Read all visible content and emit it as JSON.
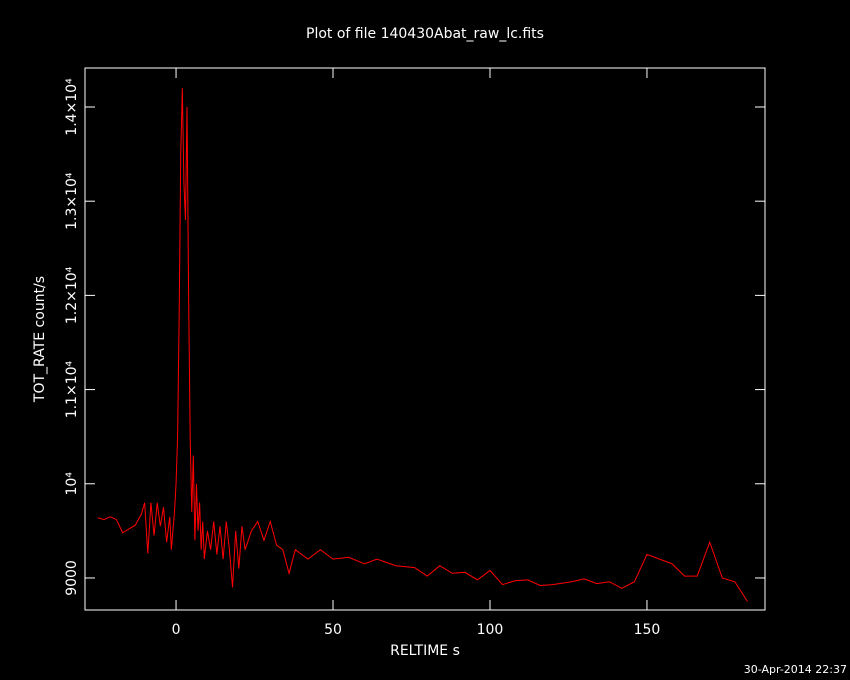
{
  "chart_data": {
    "type": "line",
    "title": "Plot of file 140430Abat_raw_lc.fits",
    "xlabel": "RELTIME  s",
    "ylabel": "TOT_RATE  count/s",
    "timestamp": "30-Apr-2014 22:37",
    "color": "#ff0000",
    "background": "#000000",
    "xlim": [
      -29,
      187.6
    ],
    "ylim": [
      8660,
      14414
    ],
    "xticks": [
      0,
      50,
      100,
      150
    ],
    "yticks": [
      9000,
      {
        "value": 10000,
        "label": "10⁴"
      },
      {
        "value": 11000,
        "label": "1.1×10⁴"
      },
      {
        "value": 12000,
        "label": "1.2×10⁴"
      },
      {
        "value": 13000,
        "label": "1.3×10⁴"
      },
      {
        "value": 14000,
        "label": "1.4×10⁴"
      }
    ],
    "x": [
      -25,
      -23,
      -21,
      -19,
      -17,
      -15,
      -13,
      -11,
      -10,
      -9,
      -8,
      -7,
      -6,
      -5,
      -4,
      -3,
      -2,
      -1.5,
      -0.5,
      0,
      0.5,
      1,
      1.5,
      2,
      2.5,
      3,
      3.5,
      4,
      4.5,
      5,
      5.5,
      6,
      6.5,
      7,
      7.5,
      8,
      8.5,
      9,
      10,
      11,
      12,
      13,
      14,
      15,
      16,
      17,
      18,
      19,
      20,
      21,
      22,
      24,
      26,
      28,
      30,
      32,
      34,
      36,
      38,
      42,
      46,
      50,
      55,
      60,
      64,
      70,
      76,
      80,
      84,
      88,
      92,
      96,
      100,
      104,
      108,
      112,
      116,
      120,
      126,
      130,
      134,
      138,
      142,
      146,
      150,
      154,
      158,
      162,
      166,
      170,
      174,
      178,
      182
    ],
    "values": [
      9640,
      9620,
      9650,
      9620,
      9480,
      9520,
      9560,
      9680,
      9800,
      9260,
      9800,
      9450,
      9800,
      9550,
      9750,
      9380,
      9650,
      9300,
      9700,
      10000,
      10500,
      11800,
      13500,
      14200,
      13200,
      12800,
      14000,
      12000,
      10500,
      9700,
      10300,
      9400,
      10000,
      9500,
      9800,
      9300,
      9600,
      9200,
      9500,
      9300,
      9600,
      9250,
      9550,
      9200,
      9600,
      9300,
      8900,
      9500,
      9100,
      9550,
      9300,
      9500,
      9600,
      9400,
      9600,
      9350,
      9300,
      9050,
      9300,
      9200,
      9300,
      9200,
      9220,
      9150,
      9200,
      9130,
      9110,
      9020,
      9130,
      9050,
      9060,
      8980,
      9080,
      8930,
      8970,
      8980,
      8920,
      8930,
      8960,
      8990,
      8940,
      8960,
      8890,
      8960,
      9250,
      9200,
      9150,
      9020,
      9020,
      9380,
      9000,
      8960,
      8750
    ]
  }
}
